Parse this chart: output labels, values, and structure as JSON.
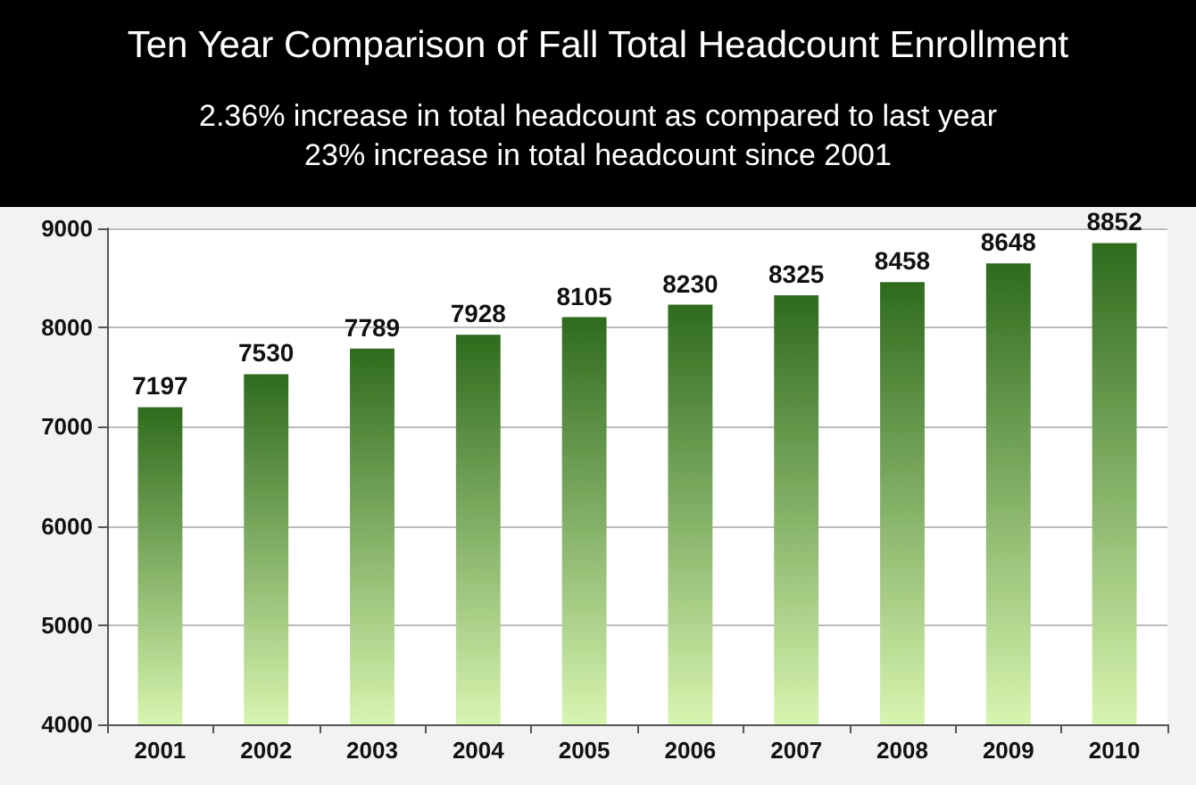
{
  "chart_data": {
    "type": "bar",
    "title": "Ten Year Comparison of Fall Total Headcount Enrollment",
    "subtitle": "2.36% increase in total headcount as compared to last year\n23% increase in total headcount since 2001",
    "categories": [
      "2001",
      "2002",
      "2003",
      "2004",
      "2005",
      "2006",
      "2007",
      "2008",
      "2009",
      "2010"
    ],
    "values": [
      7197,
      7530,
      7789,
      7928,
      8105,
      8230,
      8325,
      8458,
      8648,
      8852
    ],
    "color": "#2f6b1c",
    "ylim": [
      4000,
      9000
    ],
    "yticks": [
      4000,
      5000,
      6000,
      7000,
      8000,
      9000
    ],
    "grid": "y",
    "data_labels": true
  }
}
